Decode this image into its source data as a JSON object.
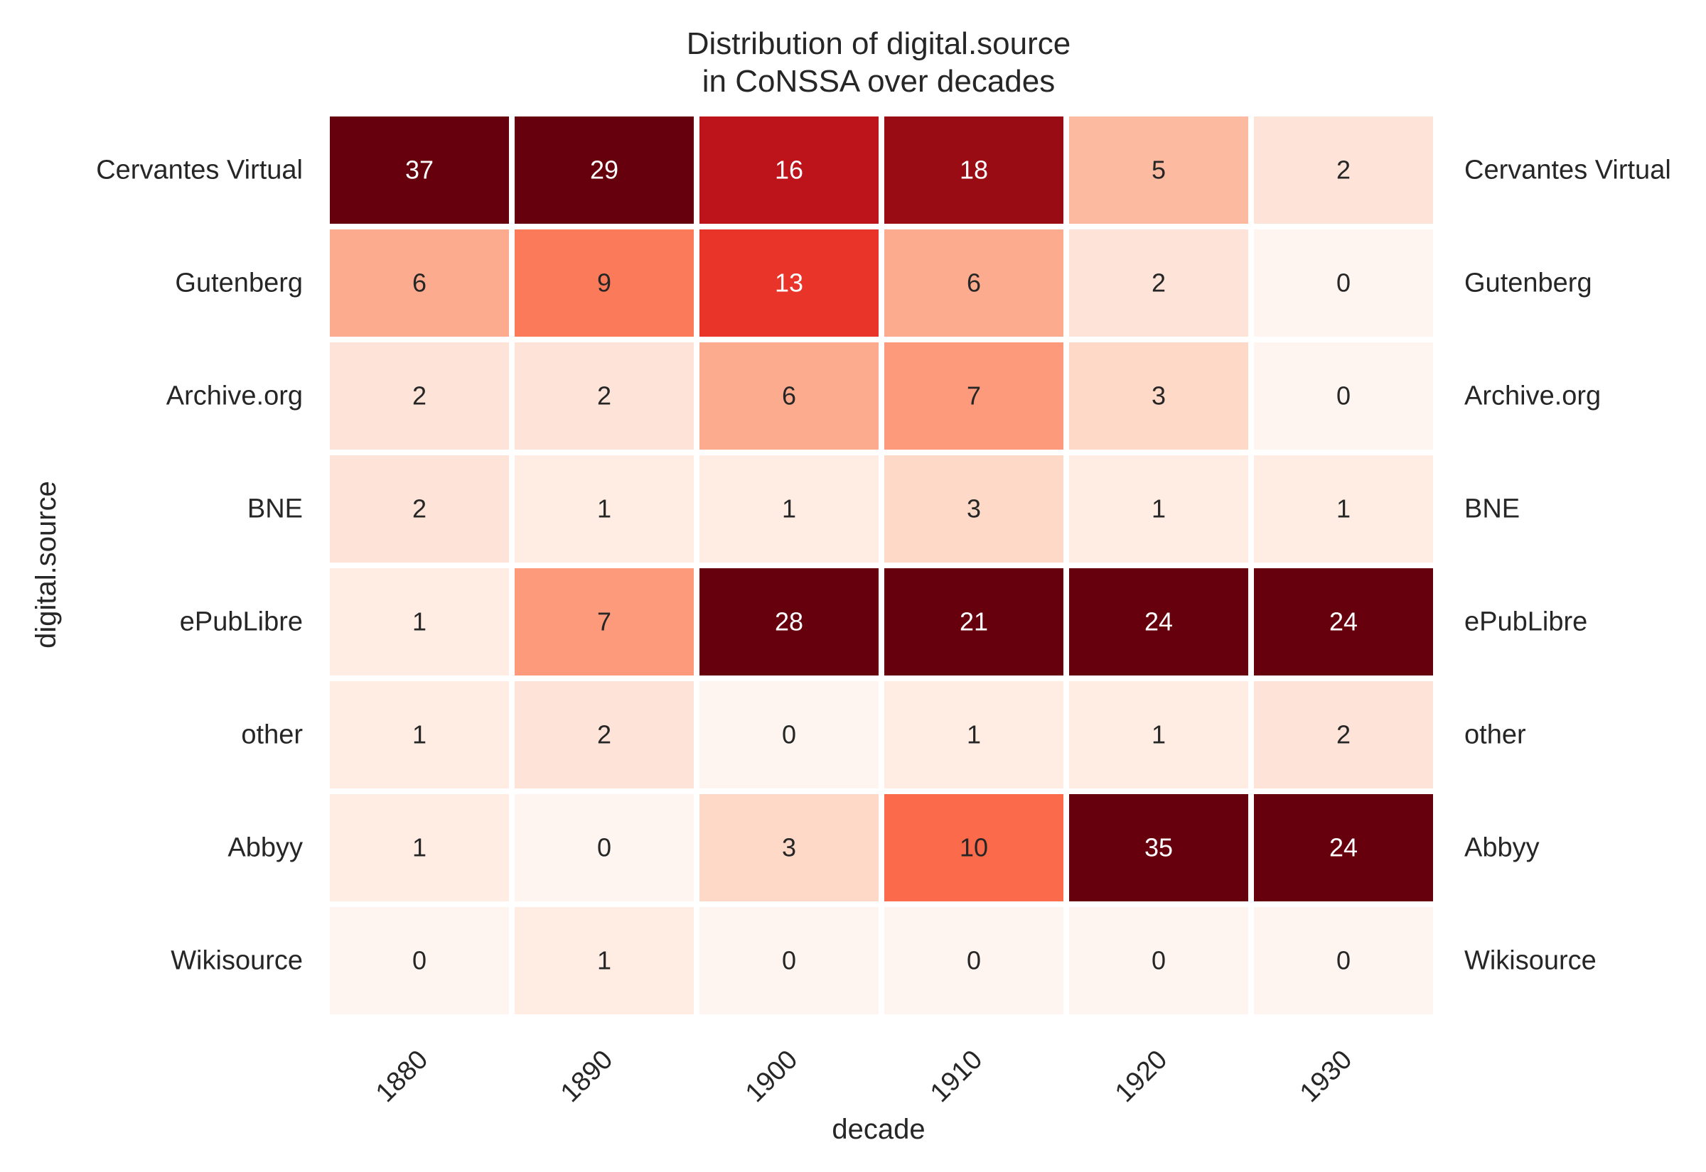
{
  "chart_data": {
    "type": "heatmap",
    "title_line1": "Distribution of digital.source",
    "title_line2": "in CoNSSA over decades",
    "xlabel": "decade",
    "ylabel": "digital.source",
    "colormap": "Reds",
    "color_min": 0,
    "color_max": 20,
    "x_categories": [
      "1880",
      "1890",
      "1900",
      "1910",
      "1920",
      "1930"
    ],
    "y_categories": [
      "Cervantes Virtual",
      "Gutenberg",
      "Archive.org",
      "BNE",
      "ePubLibre",
      "other",
      "Abbyy",
      "Wikisource"
    ],
    "values": [
      [
        37,
        29,
        16,
        18,
        5,
        2
      ],
      [
        6,
        9,
        13,
        6,
        2,
        0
      ],
      [
        2,
        2,
        6,
        7,
        3,
        0
      ],
      [
        2,
        1,
        1,
        3,
        1,
        1
      ],
      [
        1,
        7,
        28,
        21,
        24,
        24
      ],
      [
        1,
        2,
        0,
        1,
        1,
        2
      ],
      [
        1,
        0,
        3,
        10,
        35,
        24
      ],
      [
        0,
        1,
        0,
        0,
        0,
        0
      ]
    ],
    "y_labels_on_both_sides": true,
    "grid": false
  }
}
